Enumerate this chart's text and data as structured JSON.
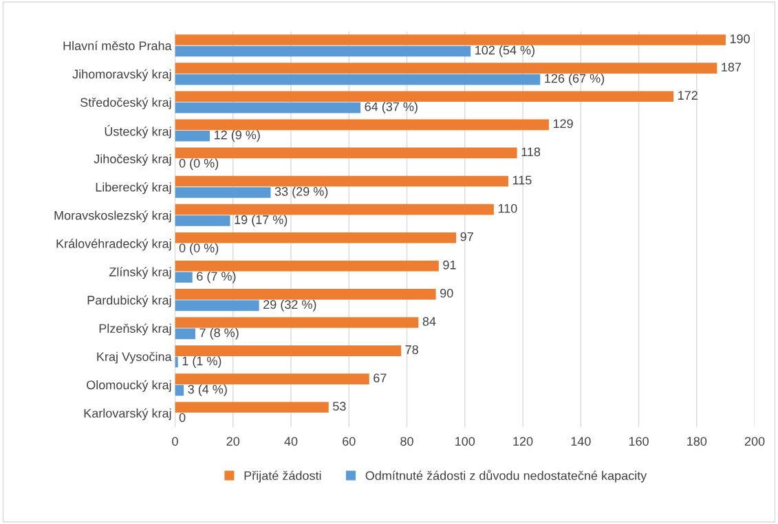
{
  "chart_data": {
    "type": "bar",
    "orientation": "horizontal",
    "categories": [
      "Hlavní město Praha",
      "Jihomoravský kraj",
      "Středočeský kraj",
      "Ústecký kraj",
      "Jihočeský kraj",
      "Liberecký kraj",
      "Moravskoslezský kraj",
      "Královéhradecký kraj",
      "Zlínský kraj",
      "Pardubický kraj",
      "Plzeňský kraj",
      "Kraj Vysočina",
      "Olomoucký kraj",
      "Karlovarský kraj"
    ],
    "series": [
      {
        "name": "Přijaté žádosti",
        "color": "#ed7d31",
        "values": [
          190,
          187,
          172,
          129,
          118,
          115,
          110,
          97,
          91,
          90,
          84,
          78,
          67,
          53
        ],
        "value_labels": [
          "190",
          "187",
          "172",
          "129",
          "118",
          "115",
          "110",
          "97",
          "91",
          "90",
          "84",
          "78",
          "67",
          "53"
        ]
      },
      {
        "name": "Odmítnuté žádosti z důvodu nedostatečné kapacity",
        "color": "#5b9bd5",
        "values": [
          102,
          126,
          64,
          12,
          0,
          33,
          19,
          0,
          6,
          29,
          7,
          1,
          3,
          0
        ],
        "value_labels": [
          "102 (54 %)",
          "126 (67 %)",
          "64 (37 %)",
          "12 (9 %)",
          "0 (0 %)",
          "33 (29 %)",
          "19 (17 %)",
          "0 (0 %)",
          "6 (7 %)",
          "29 (32 %)",
          "7 (8 %)",
          "1 (1 %)",
          "3 (4 %)",
          "0"
        ]
      }
    ],
    "xlim": [
      0,
      200
    ],
    "xticks": [
      0,
      20,
      40,
      60,
      80,
      100,
      120,
      140,
      160,
      180,
      200
    ],
    "grid": "x",
    "legend": "bottom"
  }
}
